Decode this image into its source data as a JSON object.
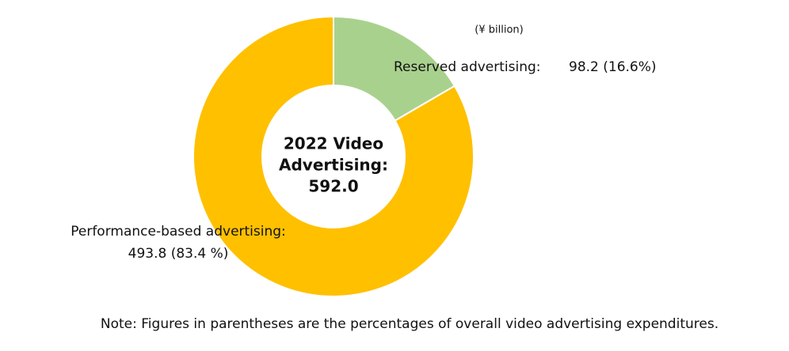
{
  "chart_data": {
    "type": "donut",
    "unit": "(¥ billion)",
    "center_label": [
      "2022 Video",
      "Advertising:"
    ],
    "total": {
      "value": 592,
      "label": "592.0"
    },
    "categories": [
      "Reserved advertising:",
      "Performance-based advertising:"
    ],
    "values": [
      98.2,
      493.8
    ],
    "value_labels": [
      "98.2 (16.6%)",
      "493.8 (83.4 %)"
    ],
    "colors": [
      "#a9d18e",
      "#ffc000"
    ],
    "note": "Note: Figures in parentheses are the percentages of overall video advertising expenditures."
  }
}
